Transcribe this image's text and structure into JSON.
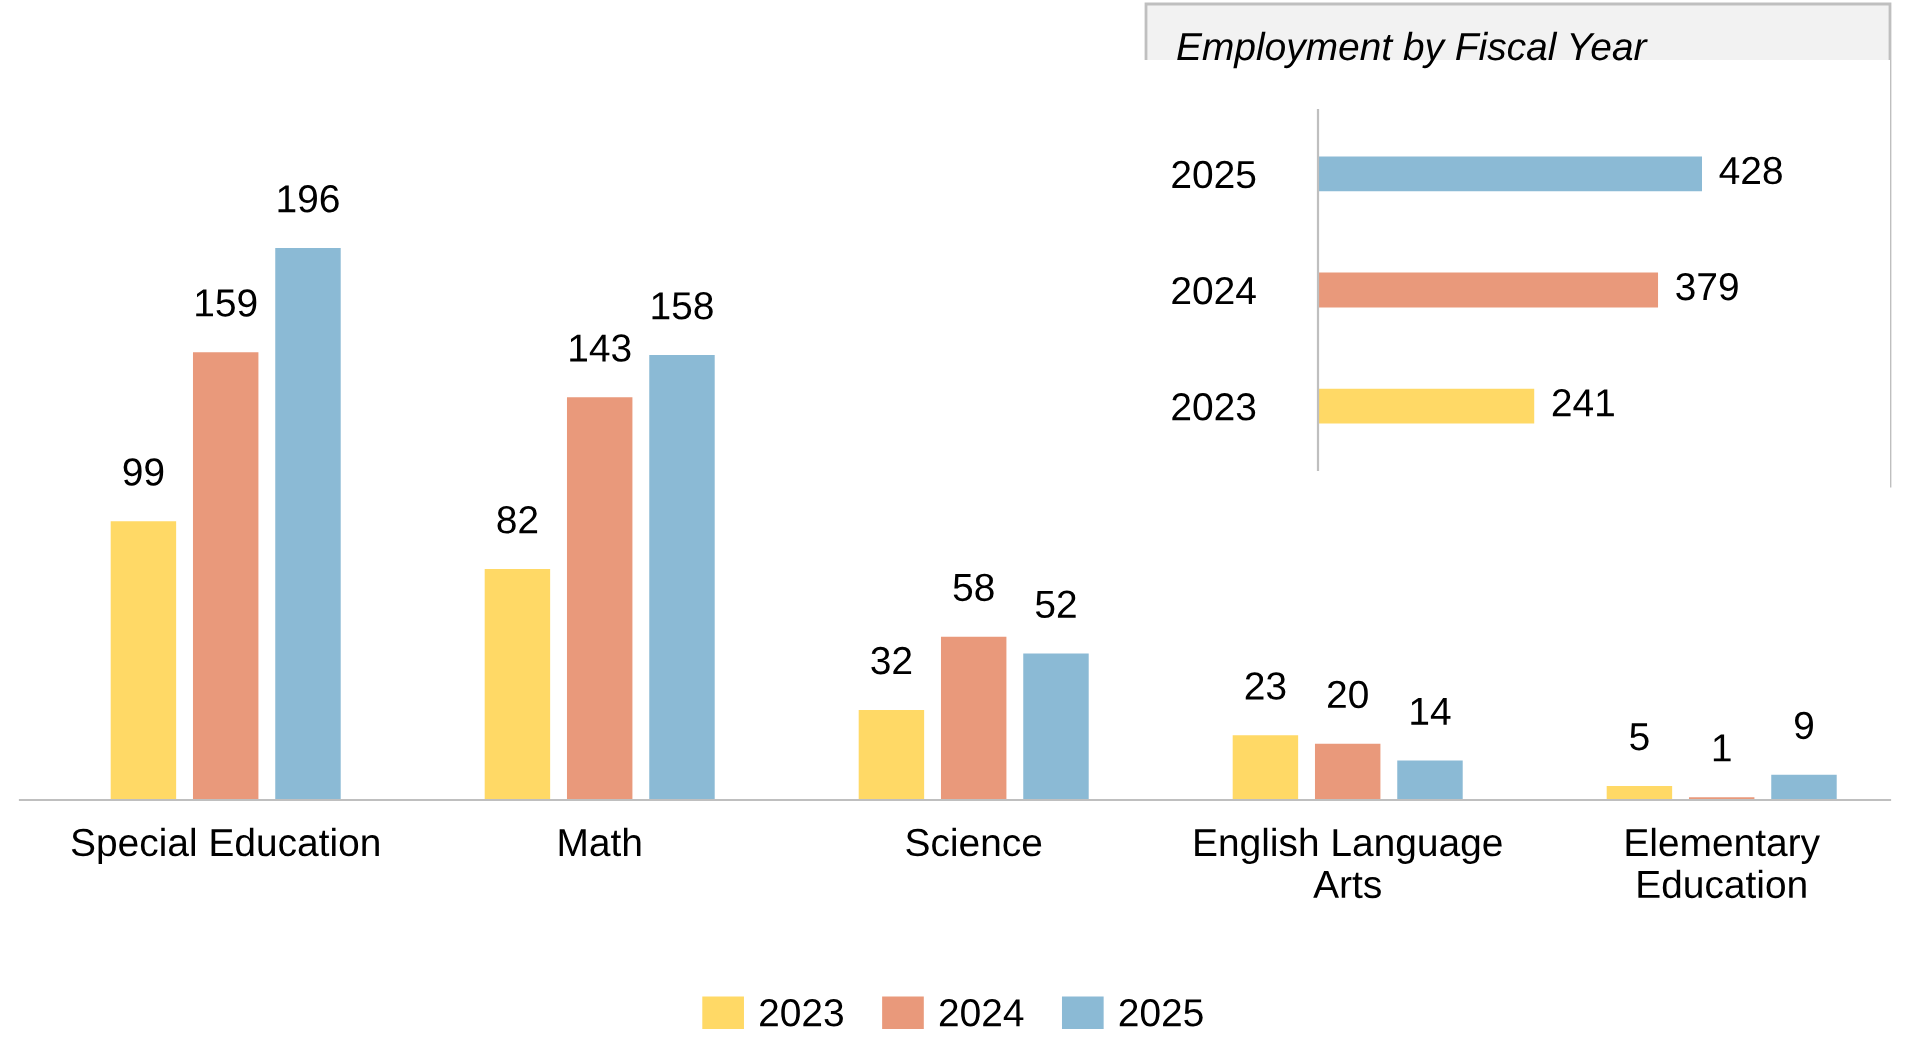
{
  "chart_data": [
    {
      "type": "bar",
      "categories": [
        "Special Education",
        "Math",
        "Science",
        "English Language\nArts",
        "Elementary\nEducation"
      ],
      "series": [
        {
          "name": "2023",
          "color": "#ffd966",
          "values": [
            99,
            82,
            32,
            23,
            5
          ]
        },
        {
          "name": "2024",
          "color": "#e9997b",
          "values": [
            159,
            143,
            58,
            20,
            1
          ]
        },
        {
          "name": "2025",
          "color": "#8bbad5",
          "values": [
            196,
            158,
            52,
            14,
            9
          ]
        }
      ],
      "data_labels": true,
      "legend": "bottom"
    },
    {
      "type": "bar",
      "orientation": "horizontal",
      "title": "Employment by Fiscal Year",
      "categories": [
        "2025",
        "2024",
        "2023"
      ],
      "values": [
        428,
        379,
        241
      ],
      "colors": [
        "#8bbad5",
        "#e9997b",
        "#ffd966"
      ],
      "data_labels": true
    }
  ]
}
